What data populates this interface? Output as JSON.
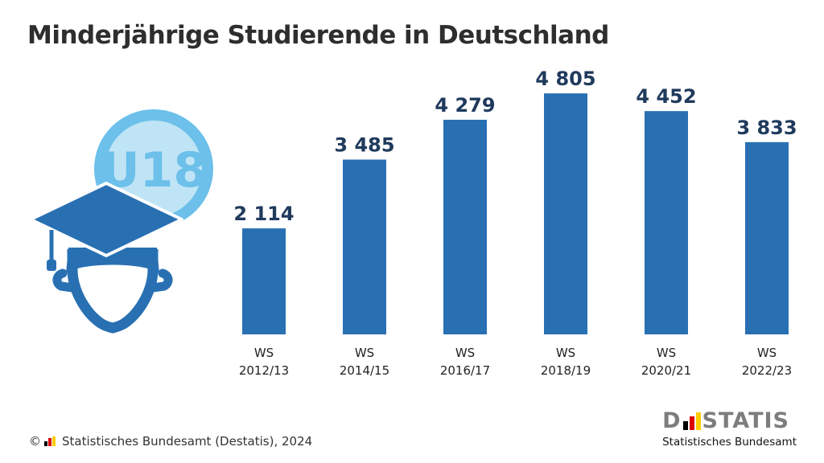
{
  "title": "Minderjährige Studierende in Deutschland",
  "illustration": {
    "badge_text": "U18",
    "icon": "graduate-cap-head-icon",
    "colors": {
      "badge_ring": "#6cc0ea",
      "badge_fill": "#bfe4f6",
      "badge_text": "#6cc0ea",
      "figure": "#2970b3"
    }
  },
  "chart_data": {
    "type": "bar",
    "categories": [
      [
        "WS",
        "2012/13"
      ],
      [
        "WS",
        "2014/15"
      ],
      [
        "WS",
        "2016/17"
      ],
      [
        "WS",
        "2018/19"
      ],
      [
        "WS",
        "2020/21"
      ],
      [
        "WS",
        "2022/23"
      ]
    ],
    "values": [
      2114,
      3485,
      4279,
      4805,
      4452,
      3833
    ],
    "data_labels": [
      "2 114",
      "3 485",
      "4 279",
      "4 805",
      "4 452",
      "3 833"
    ],
    "ylim": [
      0,
      5000
    ],
    "grid": false,
    "bar_color": "#2970b3",
    "label_color": "#1f3a5c"
  },
  "footer": {
    "copyright": "© ",
    "source": "Statistisches Bundesamt (Destatis), 2024"
  },
  "logo": {
    "mark_left": "D",
    "mark_right": "STATIS",
    "subtitle": "Statistisches Bundesamt",
    "flag_colors": [
      "#000000",
      "#dd0000",
      "#ffcc00"
    ]
  }
}
